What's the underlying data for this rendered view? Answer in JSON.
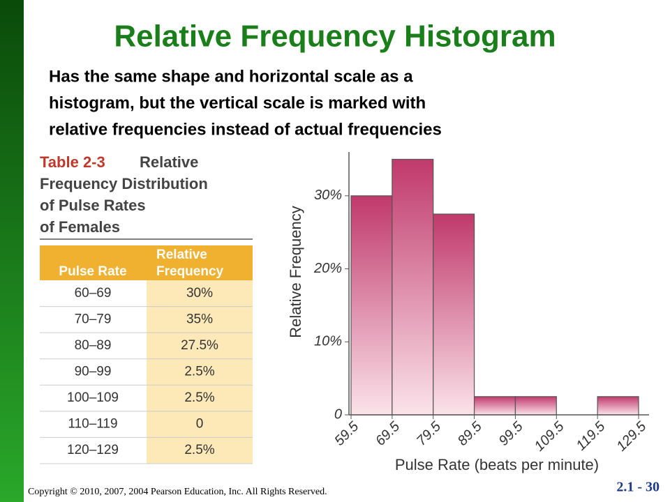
{
  "slide": {
    "title": "Relative Frequency Histogram",
    "text": [
      "Has the same shape and horizontal scale as a",
      "histogram, but the vertical scale is marked with",
      "relative frequencies instead of actual frequencies"
    ],
    "footer": "Copyright © 2010, 2007, 2004 Pearson Education, Inc. All Rights Reserved.",
    "page": "2.1 - 30"
  },
  "table": {
    "label": "Table 2-3",
    "caption": [
      "Relative",
      "Frequency Distribution",
      "of Pulse Rates",
      "of Females"
    ],
    "header": [
      "Pulse Rate",
      "Relative",
      "Frequency"
    ],
    "rows": [
      [
        "60–69",
        "30%"
      ],
      [
        "70–79",
        "35%"
      ],
      [
        "80–89",
        "27.5%"
      ],
      [
        "90–99",
        "2.5%"
      ],
      [
        "100–109",
        "2.5%"
      ],
      [
        "110–119",
        "0"
      ],
      [
        "120–129",
        "2.5%"
      ]
    ]
  },
  "chart_data": {
    "type": "histogram",
    "x_label": "Pulse Rate (beats per minute)",
    "y_label": "Relative Frequency",
    "bins": [
      59.5,
      69.5,
      79.5,
      89.5,
      99.5,
      109.5,
      119.5,
      129.5
    ],
    "values": [
      30,
      35,
      27.5,
      2.5,
      2.5,
      0,
      2.5
    ],
    "color": "#c0396b",
    "xlim": [
      59.5,
      129.5
    ],
    "xticks": [
      59.5,
      69.5,
      79.5,
      89.5,
      99.5,
      109.5,
      119.5,
      129.5
    ],
    "ylim": [
      0,
      36
    ],
    "yticks": [
      0,
      {
        "value": 10,
        "label": "10%"
      },
      {
        "value": 20,
        "label": "20%"
      },
      {
        "value": 30,
        "label": "30%"
      }
    ]
  }
}
